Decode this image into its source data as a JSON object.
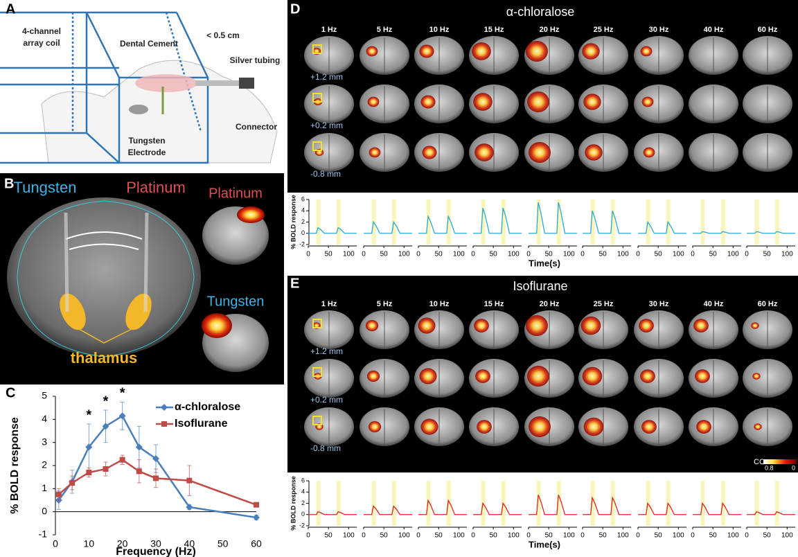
{
  "panel_letters": [
    "A",
    "B",
    "C",
    "D",
    "E"
  ],
  "panel_a": {
    "coil": [
      "4-channel",
      "array coil"
    ],
    "cement": "Dental Cement",
    "distance": "< 0.5 cm",
    "tubing": "Silver tubing",
    "connector": "Connector",
    "electrode": [
      "Tungsten",
      "Electrode"
    ]
  },
  "panel_b": {
    "left": "Tungsten",
    "right": "Platinum",
    "region": "thalamus",
    "map_top": "Platinum",
    "map_bottom": "Tungsten"
  },
  "chart_data": {
    "type": "line",
    "y_label": "% BOLD response",
    "x_label": "Frequency (Hz)",
    "x": [
      1,
      5,
      10,
      15,
      20,
      25,
      30,
      40,
      60
    ],
    "series": [
      {
        "name": "α-chloralose",
        "color": "#4a7ebb",
        "values": [
          0.5,
          1.3,
          2.8,
          3.7,
          4.15,
          2.8,
          2.3,
          0.2,
          -0.25
        ],
        "errors": [
          0.4,
          0.5,
          1.0,
          0.7,
          0.6,
          0.9,
          0.6,
          0.1,
          0.1
        ]
      },
      {
        "name": "Isoflurane",
        "color": "#be4b48",
        "values": [
          0.75,
          1.25,
          1.7,
          1.85,
          2.25,
          1.75,
          1.45,
          1.35,
          0.3
        ],
        "errors": [
          0.25,
          0.3,
          0.2,
          0.3,
          0.2,
          0.5,
          0.4,
          0.65,
          0.1
        ]
      }
    ],
    "annotations": [
      {
        "x": 10,
        "series": 0,
        "label": "*"
      },
      {
        "x": 15,
        "series": 0,
        "label": "*"
      },
      {
        "x": 20,
        "series": 0,
        "label": "*"
      }
    ],
    "xlim": [
      0,
      60
    ],
    "ylim": [
      -1,
      5
    ],
    "xticks": [
      0,
      10,
      20,
      30,
      40,
      50,
      60
    ],
    "yticks": [
      -1,
      0,
      1,
      2,
      3,
      4,
      5
    ]
  },
  "panel_d": {
    "title": "α-chloralose",
    "frequencies": [
      "1 Hz",
      "5 Hz",
      "10 Hz",
      "15 Hz",
      "20 Hz",
      "25 Hz",
      "30 Hz",
      "40 Hz",
      "60 Hz"
    ],
    "depths": [
      "+1.2 mm",
      "+0.2 mm",
      "-0.8 mm"
    ],
    "trace": {
      "y_label": "% BOLD response",
      "x_label": "Time(s)",
      "color": "#29a8d8",
      "xlim": [
        0,
        120
      ],
      "ylim": [
        -2,
        6
      ],
      "xticks": [
        0,
        50,
        100
      ],
      "yticks": [
        6,
        4,
        2,
        0,
        -2
      ],
      "stimulus_on": [
        [
          20,
          30
        ],
        [
          70,
          80
        ]
      ],
      "peaks": [
        1,
        2,
        3,
        4.5,
        5.5,
        4,
        2,
        0.3,
        0.3
      ]
    }
  },
  "panel_e": {
    "title": "Isoflurane",
    "frequencies": [
      "1 Hz",
      "5 Hz",
      "10 Hz",
      "15 Hz",
      "20 Hz",
      "25 Hz",
      "30 Hz",
      "40 Hz",
      "60 Hz"
    ],
    "depths": [
      "+1.2 mm",
      "+0.2 mm",
      "-0.8 mm"
    ],
    "colorbar": {
      "label": "CC",
      "min_label": "0.8",
      "max_label": "0"
    },
    "trace": {
      "y_label": "% BOLD response",
      "x_label": "Time(s)",
      "color": "#e02020",
      "xlim": [
        0,
        120
      ],
      "ylim": [
        -2,
        6
      ],
      "xticks": [
        0,
        50,
        100
      ],
      "yticks": [
        6,
        4,
        2,
        0,
        -2
      ],
      "stimulus_on": [
        [
          20,
          30
        ],
        [
          70,
          80
        ]
      ],
      "peaks": [
        0.5,
        1.5,
        2.5,
        2,
        3.5,
        3,
        2,
        2,
        0.5
      ]
    }
  }
}
